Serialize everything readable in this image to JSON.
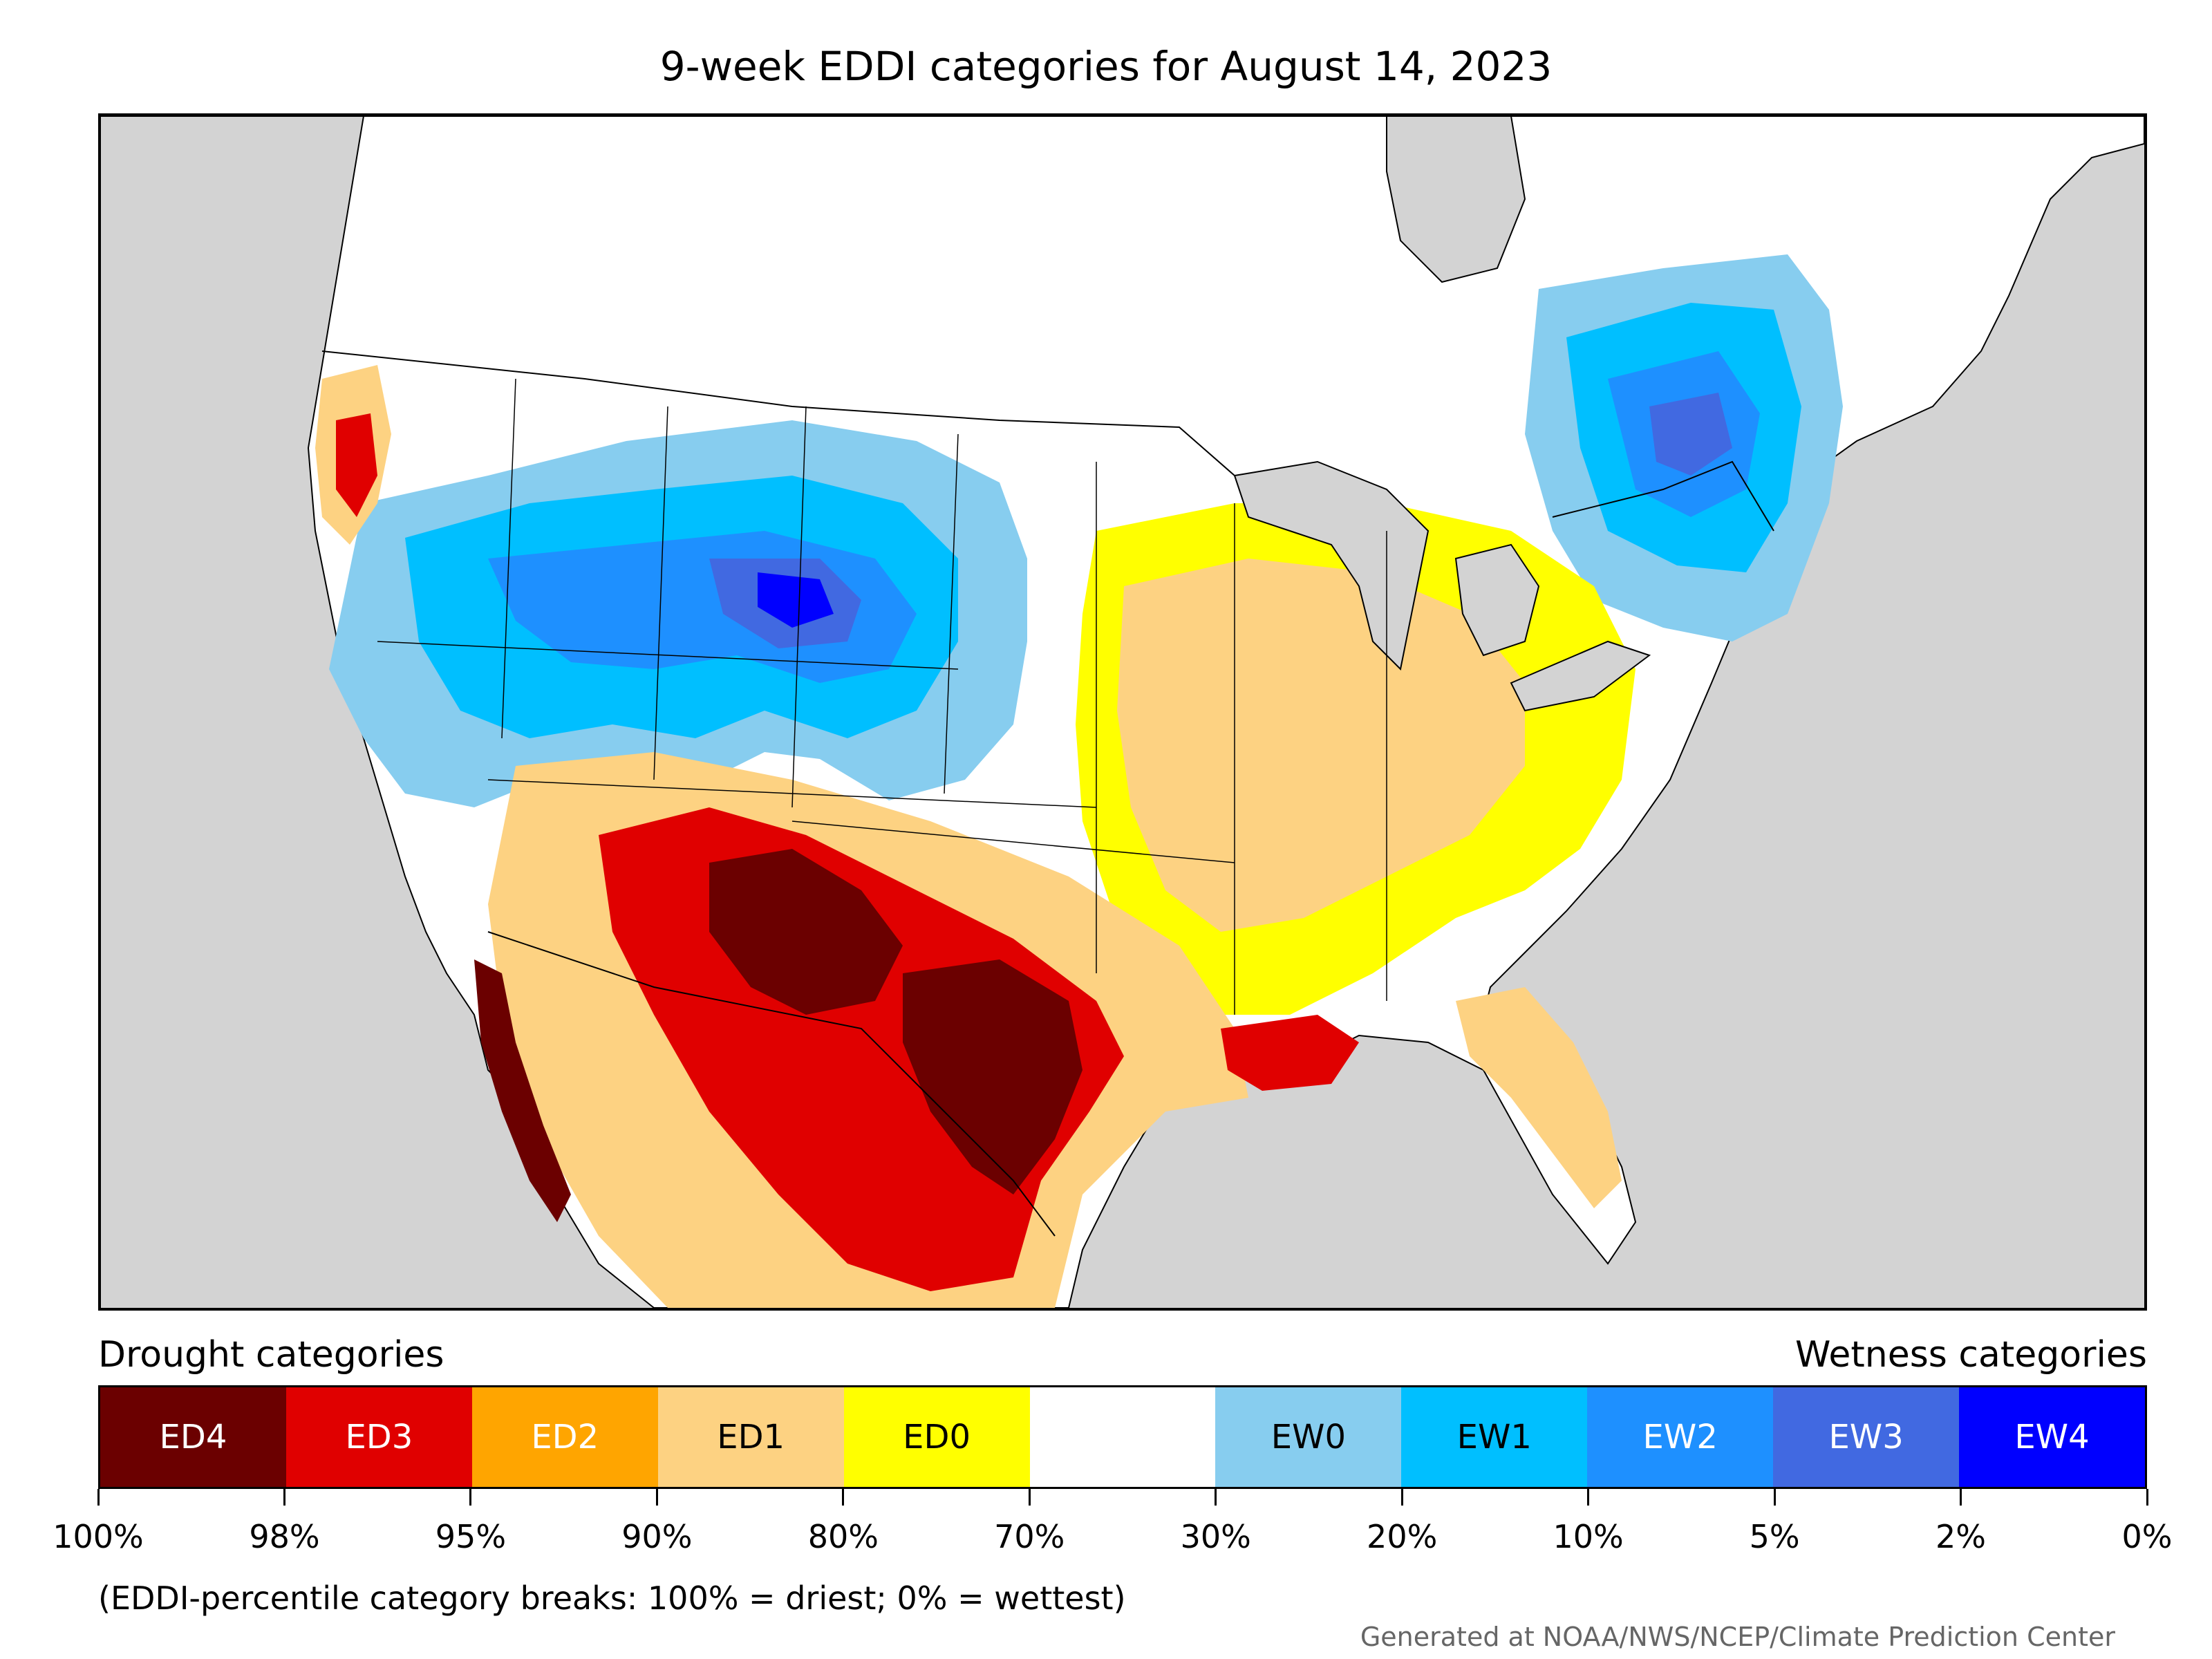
{
  "title": "9-week EDDI categories for August 14, 2023",
  "legend": {
    "left_heading": "Drought categories",
    "right_heading": "Wetness categories",
    "categories": [
      {
        "label": "ED4",
        "color": "#6b0000",
        "text_color": "#ffffff"
      },
      {
        "label": "ED3",
        "color": "#e00000",
        "text_color": "#ffffff"
      },
      {
        "label": "ED2",
        "color": "#ffa500",
        "text_color": "#ffffff"
      },
      {
        "label": "ED1",
        "color": "#fdd282",
        "text_color": "#000000"
      },
      {
        "label": "ED0",
        "color": "#ffff00",
        "text_color": "#000000"
      },
      {
        "label": "",
        "color": "#ffffff",
        "text_color": "#000000"
      },
      {
        "label": "EW0",
        "color": "#87cdef",
        "text_color": "#000000"
      },
      {
        "label": "EW1",
        "color": "#00bfff",
        "text_color": "#000000"
      },
      {
        "label": "EW2",
        "color": "#1e90ff",
        "text_color": "#ffffff"
      },
      {
        "label": "EW3",
        "color": "#4169e1",
        "text_color": "#ffffff"
      },
      {
        "label": "EW4",
        "color": "#0000ff",
        "text_color": "#ffffff"
      }
    ],
    "tick_labels": [
      "100%",
      "98%",
      "95%",
      "90%",
      "80%",
      "70%",
      "30%",
      "20%",
      "10%",
      "5%",
      "2%",
      "0%"
    ]
  },
  "note": "(EDDI-percentile category breaks: 100% = driest; 0% = wettest)",
  "credit": "Generated at NOAA/NWS/NCEP/Climate Prediction Center",
  "map_colors": {
    "ocean": "#d3d3d3",
    "land": "#ffffff",
    "border": "#000000"
  }
}
